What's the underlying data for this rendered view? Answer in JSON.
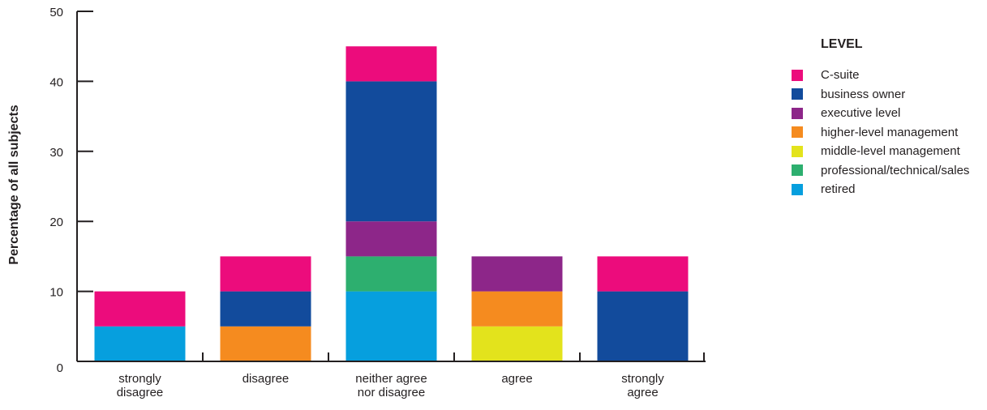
{
  "chart_data": {
    "type": "bar",
    "stacked": true,
    "categories": [
      "strongly\ndisagree",
      "disagree",
      "neither agree\nnor disagree",
      "agree",
      "strongly\nagree"
    ],
    "ylabel": "Percentage of all subjects",
    "xlabel": "",
    "ylim": [
      0,
      50
    ],
    "yticks": [
      0,
      10,
      20,
      30,
      40,
      50
    ],
    "grid": false,
    "legend_title": "LEVEL",
    "legend_position": "right",
    "series": [
      {
        "name": "C-suite",
        "color": "#ec0c7c",
        "values": [
          5,
          5,
          5,
          0,
          5
        ]
      },
      {
        "name": "business owner",
        "color": "#124b9c",
        "values": [
          0,
          5,
          20,
          0,
          10
        ]
      },
      {
        "name": "executive level",
        "color": "#8d2689",
        "values": [
          0,
          0,
          5,
          5,
          0
        ]
      },
      {
        "name": "higher-level management",
        "color": "#f58b1f",
        "values": [
          0,
          5,
          0,
          5,
          0
        ]
      },
      {
        "name": "middle-level management",
        "color": "#e3e31c",
        "values": [
          0,
          0,
          0,
          5,
          0
        ]
      },
      {
        "name": "professional/technical/sales",
        "color": "#2daf6f",
        "values": [
          0,
          0,
          5,
          0,
          0
        ]
      },
      {
        "name": "retired",
        "color": "#069fde",
        "values": [
          5,
          0,
          10,
          0,
          0
        ]
      }
    ]
  }
}
